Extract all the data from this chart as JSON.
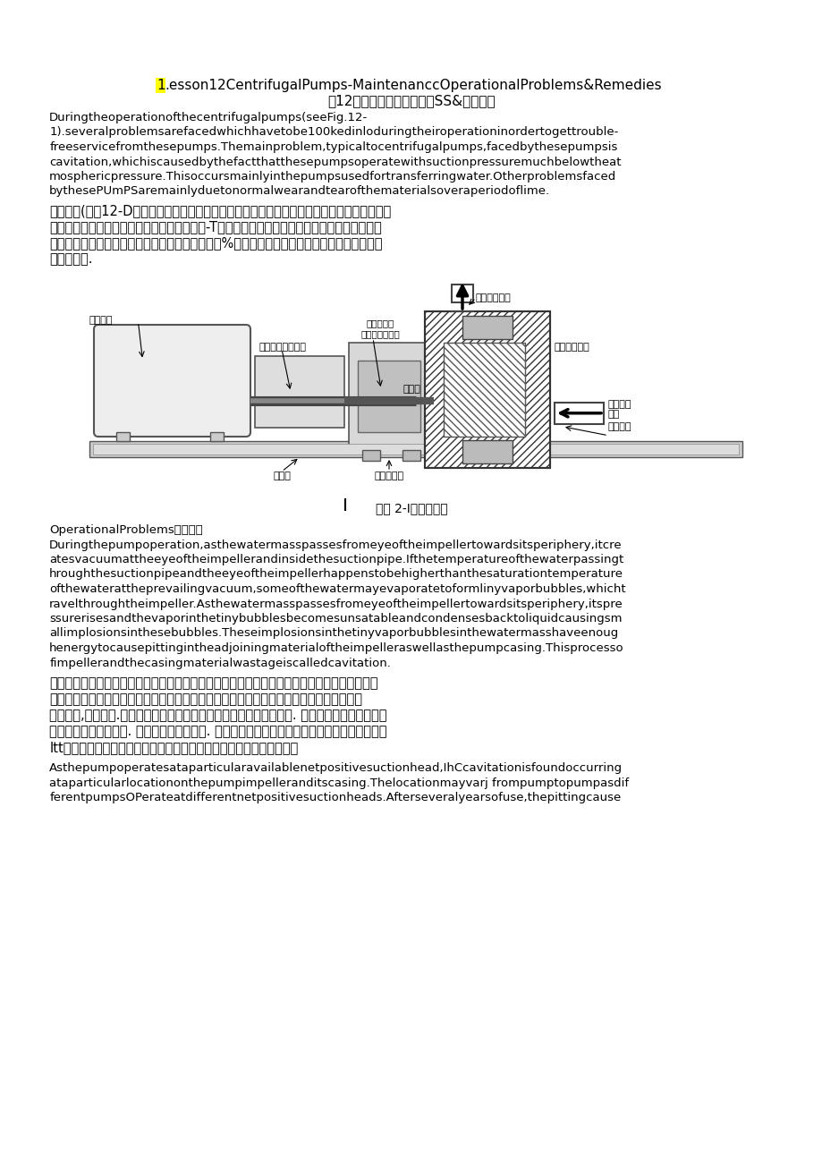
{
  "title_1_highlight": "1",
  "title_1_rest": ".esson12CentrifugalPumps-MaintenanccOperationalProblems&Remedies",
  "title_2": "第12课离心泵的难奸操作闽SS&补救措施",
  "highlight_color": "#FFFF00",
  "para1_lines": [
    "Duringtheoperationofthecentrifugalpumps(seeFig.12-",
    "1).severalproblemsarefacedwhichhavetobe100kedinloduringtheiroperationinordertogettrouble-",
    "freeservicefromthesepumps.Themainproblem,typicaltocentrifugalpumps,facedbythesepumpsis",
    "cavitation,whichiscausedbythefactthatthesepumpsoperatewithsuctionpressuremuchbelowtheat",
    "mosphericpressure.Thisoccursmainlyinthepumpsusedfortransferringwater.Otherproblemsfaced",
    "bythesePUmPSaremainlyduetonormalwearandtearofthematerialsoveraperiodoflime."
  ],
  "para2_lines": [
    "在离心泵(见图12-D运转期间，要了解岗心泵运转期间会面临的若干闽题以使其无故障地工作。",
    "离心系面彼的典型的主要闽题是气泵，造成这-T实的缘由是这些泵是在吸入压力大大低于大气压",
    "力下工作的。这主要发生在用于输送水的泵中。这%泵面临的其他闽题主要是在一段时间内材料",
    "的正常磨根."
  ],
  "fig_label": "图｜ 2-I单级离心泵",
  "fig_sep": "│",
  "diagram_labels": {
    "discharge": "水泵排出蜗壳",
    "motor": "驱动马达",
    "coupling": "联轴器和防护装置",
    "seal": "填料压盖或\n旋转的机械轴封",
    "impeller": "叶轮（闭式）",
    "wear_ring": "耐磨环",
    "suction": "水泵吸入\n蜗壳",
    "inlet": "叶轮入口",
    "drive_shaft": "驱动轴",
    "drive_bearing": "驱动轴轴承"
  },
  "para3_line0": "OperationalProblems操作何也",
  "para3_lines": [
    "Duringthepumpoperation,asthewatermasspassesfromeyeoftheimpellertowardsitsperiphery,itcre",
    "atesvacuumattheeyeoftheimpellerandinsidethesuctionpipe.Ifthetemperatureofthewaterpassingt",
    "hroughthesuctionpipeandtheeyeoftheimpellerhappenstobehigherthanthesaturationtemperature",
    "ofthewaterattheprevailingvacuum,someofthewatermayevaporatetoformlinyvaporbubbles,whicht",
    "ravelthroughtheimpeller.Asthewatermasspassesfromeyeoftheimpellertowardsitsperiphery,itspre",
    "ssurerisesandthevaporinthetinybubblesbecomesunsatableandcondensesbacktoliquidcausingsm",
    "allimplosionsinthesebubbles.Theseimplosionsinthetinyvaporbubblesinthewatermasshaveenoug",
    "henergytocausepittingintheadjoiningmaterialoftheimpelleraswellasthepumpcasing.Thisprocesso",
    "fimpellerandthecasingmaterialwastageiscalledcavitation."
  ],
  "para4_lines": [
    "在泵操作过程中，当集聚的水从叶轮中心向外相传递时，在叶片中心和吸入管内产生了真空。假",
    "如通过吸入管和叶孔的水温高于在当前的真空下水的饱和温度，一的水可能会蒸发形成小的",
    "水蒸气泡,流过叶轮.当集聚的水从叶轮中心向外国传递时，其压力增加. 而且在小气泡中的蒸气变",
    "得不稳定并凝聚为液体. 导致在小气泡中内爆. 这些水中小气泡的内爆具有足够的能量而造成叶轮",
    "Itt印的材料以及泵壳的内噬。叶轮和泵壳材料损耗的过程被称为气泵。"
  ],
  "para5_lines": [
    "Asthepumpoperatesataparticularavailablenetpositivesuctionhead,IhCcavitationisfoundoccurring",
    "ataparticularlocationonthepumpimpelleranditscasing.Thelocationmayvarj frompumptopumpasdif",
    "ferentpumpsOPerateatdifferentnetpositivesuctionheads.Afterseveralyearsofuse,thepittingcause"
  ],
  "bg_color": "#FFFFFF",
  "text_color": "#000000",
  "lm": 0.06,
  "page_width": 9.2,
  "page_height": 13.01
}
